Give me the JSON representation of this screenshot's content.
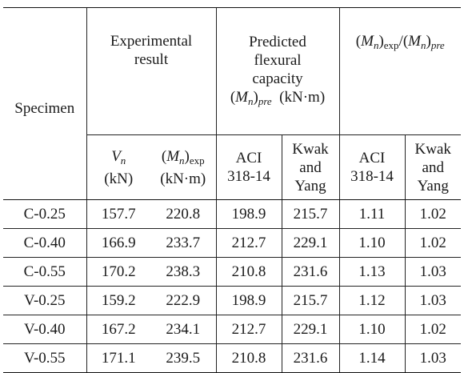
{
  "headers": {
    "specimen": "Specimen",
    "experimental": "Experimental result",
    "predicted_line1": "Predicted",
    "predicted_line2": "flexural",
    "predicted_line3": "capacity",
    "predicted_unit": "(kN·m)",
    "ratio_exp_sub": "exp",
    "ratio_pre_sub": "pre",
    "vn_unit": "(kN)",
    "mexp_sub": "exp",
    "mexp_unit": "(kN·m)",
    "aci_line1": "ACI",
    "aci_line2": "318-14",
    "kwak_line1": "Kwak",
    "kwak_line2": "and",
    "kwak_line3": "Yang"
  },
  "rows": [
    [
      "C-0.25",
      "157.7",
      "220.8",
      "198.9",
      "215.7",
      "1.11",
      "1.02"
    ],
    [
      "C-0.40",
      "166.9",
      "233.7",
      "212.7",
      "229.1",
      "1.10",
      "1.02"
    ],
    [
      "C-0.55",
      "170.2",
      "238.3",
      "210.8",
      "231.6",
      "1.13",
      "1.03"
    ],
    [
      "V-0.25",
      "159.2",
      "222.9",
      "198.9",
      "215.7",
      "1.12",
      "1.03"
    ],
    [
      "V-0.40",
      "167.2",
      "234.1",
      "212.7",
      "229.1",
      "1.10",
      "1.02"
    ],
    [
      "V-0.55",
      "171.1",
      "239.5",
      "210.8",
      "231.6",
      "1.14",
      "1.03"
    ]
  ]
}
